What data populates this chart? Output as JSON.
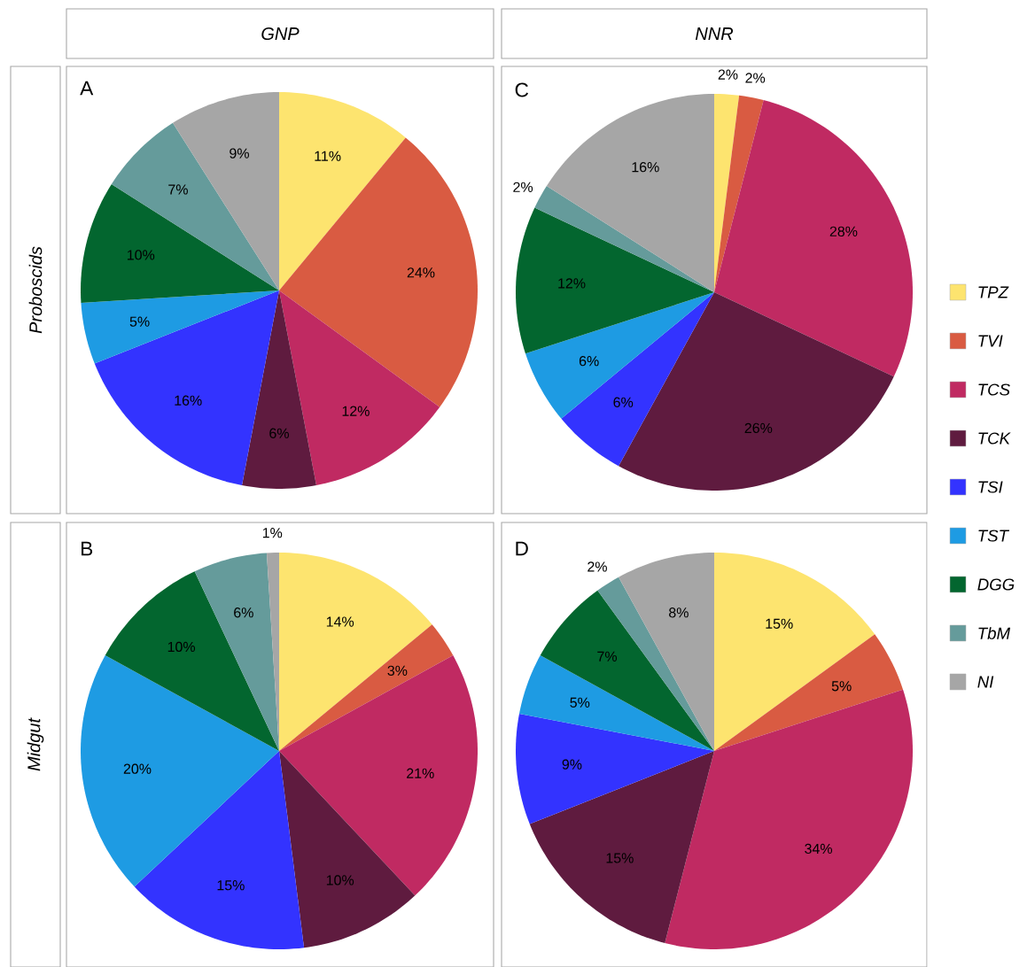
{
  "chart_data": [
    {
      "type": "pie",
      "title": "A",
      "annotations": [
        "GNP",
        "Proboscids"
      ],
      "categories": [
        null,
        null,
        null,
        null,
        null,
        null,
        null,
        null,
        null
      ],
      "values": [
        11,
        24,
        12,
        6,
        16,
        5,
        10,
        7,
        9
      ],
      "value_labels": [
        "11%",
        "24%",
        "12%",
        "6%",
        "16%",
        "5%",
        "10%",
        "7%",
        "9%"
      ],
      "colors": [
        "#fde46f",
        "#d95b42",
        "#c02a62",
        "#5f1b3f",
        "#3333ff",
        "#1e9be3",
        "#03662f",
        "#659b9b",
        "#a6a6a6"
      ]
    },
    {
      "type": "pie",
      "title": "C",
      "annotations": [
        "NNR"
      ],
      "legend": "right",
      "categories": [
        "TPZ",
        "TVI",
        "TCS",
        "TCK",
        "TSI",
        "TST",
        "DGG",
        "TbM",
        "NI"
      ],
      "values": [
        2,
        2,
        28,
        26,
        6,
        6,
        12,
        2,
        16
      ],
      "value_labels": [
        "2%",
        "2%",
        "28%",
        "26%",
        "6%",
        "6%",
        "12%",
        "2%",
        "16%"
      ],
      "colors": [
        "#fde46f",
        "#d95b42",
        "#c02a62",
        "#5f1b3f",
        "#3333ff",
        "#1e9be3",
        "#03662f",
        "#659b9b",
        "#a6a6a6"
      ]
    },
    {
      "type": "pie",
      "title": "B",
      "annotations": [
        "Midgut"
      ],
      "categories": [
        null,
        null,
        null,
        null,
        null,
        null,
        null,
        null,
        null
      ],
      "values": [
        14,
        3,
        21,
        10,
        15,
        20,
        10,
        6,
        1
      ],
      "value_labels": [
        "14%",
        "3%",
        "21%",
        "10%",
        "15%",
        "20%",
        "10%",
        "6%",
        "1%"
      ],
      "colors": [
        "#fde46f",
        "#d95b42",
        "#c02a62",
        "#5f1b3f",
        "#3333ff",
        "#1e9be3",
        "#03662f",
        "#659b9b",
        "#a6a6a6"
      ]
    },
    {
      "type": "pie",
      "title": "D",
      "categories": [
        null,
        null,
        null,
        null,
        null,
        null,
        null,
        null,
        null
      ],
      "values": [
        15,
        5,
        34,
        15,
        9,
        5,
        7,
        2,
        8
      ],
      "value_labels": [
        "15%",
        "5%",
        "34%",
        "15%",
        "9%",
        "5%",
        "7%",
        "2%",
        "8%"
      ],
      "colors": [
        "#fde46f",
        "#d95b42",
        "#c02a62",
        "#5f1b3f",
        "#3333ff",
        "#1e9be3",
        "#03662f",
        "#659b9b",
        "#a6a6a6"
      ]
    }
  ]
}
